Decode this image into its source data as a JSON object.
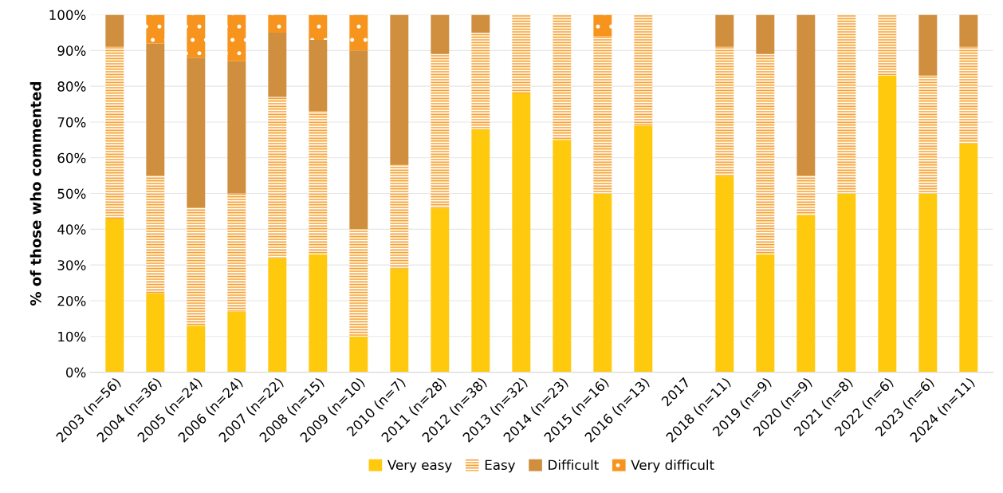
{
  "chart_data": {
    "type": "bar",
    "stacked": true,
    "ylabel": "% of those who commented",
    "categories": [
      "2003 (n=56)",
      "2004 (n=36)",
      "2005 (n=24)",
      "2006 (n=24)",
      "2007 (n=22)",
      "2008 (n=15)",
      "2009 (n=10)",
      "2010 (n=7)",
      "2011 (n=28)",
      "2012 (n=38)",
      "2013 (n=32)",
      "2014 (n=23)",
      "2015 (n=16)",
      "2016 (n=13)",
      "2017",
      "2018 (n=11)",
      "2019 (n=9)",
      "2020 (n=9)",
      "2021 (n=8)",
      "2022 (n=6)",
      "2023 (n=6)",
      "2024 (n=11)"
    ],
    "series": [
      {
        "name": "Very easy",
        "color": "#ffc90e",
        "values": [
          43,
          22,
          13,
          17,
          32,
          33,
          10,
          29,
          46,
          68,
          78,
          65,
          50,
          69,
          null,
          55,
          33,
          44,
          50,
          83,
          50,
          64
        ]
      },
      {
        "name": "Easy",
        "color": "#f8a12e",
        "values": [
          48,
          33,
          33,
          33,
          45,
          40,
          30,
          29,
          43,
          27,
          22,
          35,
          44,
          31,
          null,
          36,
          56,
          11,
          50,
          17,
          33,
          27
        ]
      },
      {
        "name": "Difficult",
        "color": "#d08f3e",
        "values": [
          9,
          37,
          42,
          37,
          18,
          20,
          50,
          42,
          11,
          5,
          0,
          0,
          0,
          0,
          null,
          9,
          11,
          45,
          0,
          0,
          17,
          9
        ]
      },
      {
        "name": "Very difficult",
        "color": "#f7941d",
        "values": [
          0,
          8,
          12,
          13,
          5,
          7,
          10,
          0,
          0,
          0,
          0,
          0,
          6,
          0,
          null,
          0,
          0,
          0,
          0,
          0,
          0,
          0
        ]
      }
    ],
    "ylim": [
      0,
      100
    ],
    "yticks": [
      {
        "value": 0,
        "label": "0%"
      },
      {
        "value": 10,
        "label": "10%"
      },
      {
        "value": 20,
        "label": "20%"
      },
      {
        "value": 30,
        "label": "30%"
      },
      {
        "value": 40,
        "label": "40%"
      },
      {
        "value": 50,
        "label": "50%"
      },
      {
        "value": 60,
        "label": "60%"
      },
      {
        "value": 70,
        "label": "70%"
      },
      {
        "value": 80,
        "label": "80%"
      },
      {
        "value": 90,
        "label": "90%"
      },
      {
        "value": 100,
        "label": "100%"
      }
    ],
    "grid": "y",
    "legend": "bottom"
  }
}
